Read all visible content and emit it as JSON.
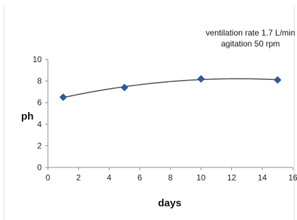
{
  "chart_data": {
    "type": "scatter",
    "title": "",
    "xlabel": "days",
    "ylabel": "ph",
    "xlim": [
      0,
      16
    ],
    "ylim": [
      0,
      10
    ],
    "xticks": [
      "0",
      "2",
      "4",
      "6",
      "8",
      "10",
      "12",
      "14",
      "16"
    ],
    "yticks": [
      "0",
      "2",
      "4",
      "6",
      "8",
      "10"
    ],
    "grid": false,
    "trendline": "polynomial",
    "annotations": [
      "ventilation rate 1.7 L/min",
      "agitation 50 rpm"
    ],
    "series": [
      {
        "x": [
          1,
          5,
          10,
          15
        ],
        "y": [
          6.5,
          7.4,
          8.2,
          8.1
        ],
        "marker": "diamond",
        "color": "#2e5aa8"
      }
    ],
    "colors": {
      "line": "#555555",
      "marker": "#2e5aa8",
      "axis": "#888888",
      "frame": "#d9d9d9"
    }
  }
}
